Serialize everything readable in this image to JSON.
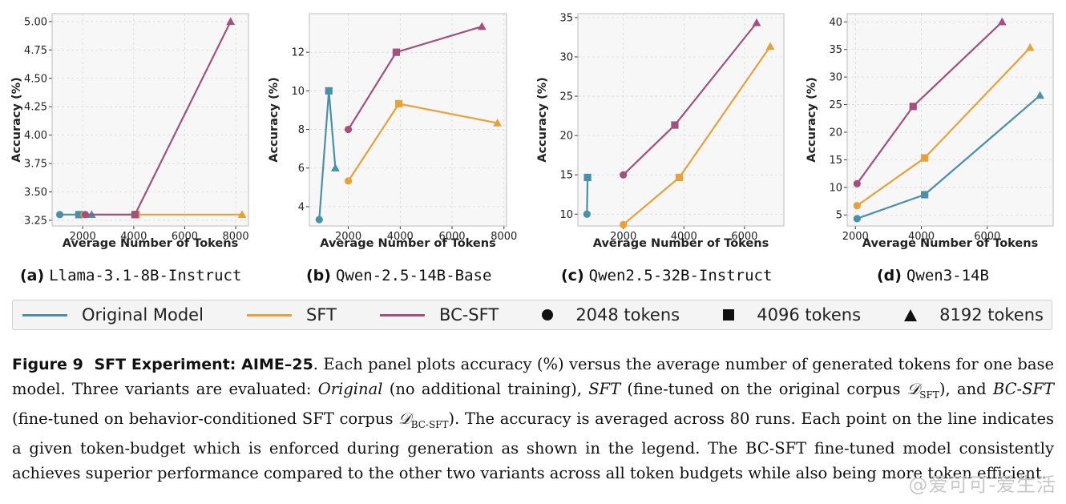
{
  "chart_data": [
    {
      "type": "line",
      "panel_tag": "(a)",
      "model_name": "Llama-3.1-8B-Instruct",
      "xlabel": "Average Number of Tokens",
      "ylabel": "Accuracy (%)",
      "xlim": [
        800,
        8500
      ],
      "ylim": [
        3.2,
        5.07
      ],
      "xticks": [
        2000,
        4000,
        6000,
        8000
      ],
      "yticks": [
        3.25,
        3.5,
        3.75,
        4.0,
        4.25,
        4.5,
        4.75,
        5.0
      ],
      "ytick_labels": [
        "3.25",
        "3.50",
        "3.75",
        "4.00",
        "4.25",
        "4.50",
        "4.75",
        "5.00"
      ],
      "grid": true,
      "series": [
        {
          "name": "Original Model",
          "color": "#4a90a8",
          "points": [
            {
              "x": 1100,
              "y": 3.3
            },
            {
              "x": 1850,
              "y": 3.3
            },
            {
              "x": 2350,
              "y": 3.3
            }
          ]
        },
        {
          "name": "SFT",
          "color": "#e8a13a",
          "points": [
            {
              "x": 2050,
              "y": 3.3
            },
            {
              "x": 4100,
              "y": 3.3
            },
            {
              "x": 8250,
              "y": 3.3
            }
          ]
        },
        {
          "name": "BC-SFT",
          "color": "#a2507e",
          "points": [
            {
              "x": 2100,
              "y": 3.3
            },
            {
              "x": 4050,
              "y": 3.3
            },
            {
              "x": 7800,
              "y": 5.0
            }
          ]
        }
      ]
    },
    {
      "type": "line",
      "panel_tag": "(b)",
      "model_name": "Qwen-2.5-14B-Base",
      "xlabel": "Average Number of Tokens",
      "ylabel": "Accuracy (%)",
      "xlim": [
        500,
        8100
      ],
      "ylim": [
        3.0,
        14.0
      ],
      "xticks": [
        2000,
        4000,
        6000,
        8000
      ],
      "yticks": [
        4,
        6,
        8,
        10,
        12
      ],
      "ytick_labels": [
        "4",
        "6",
        "8",
        "10",
        "12"
      ],
      "grid": true,
      "series": [
        {
          "name": "Original Model",
          "color": "#4a90a8",
          "points": [
            {
              "x": 880,
              "y": 3.33
            },
            {
              "x": 1250,
              "y": 10.0
            },
            {
              "x": 1500,
              "y": 6.0
            }
          ]
        },
        {
          "name": "SFT",
          "color": "#e8a13a",
          "points": [
            {
              "x": 2000,
              "y": 5.33
            },
            {
              "x": 3950,
              "y": 9.33
            },
            {
              "x": 7750,
              "y": 8.33
            }
          ]
        },
        {
          "name": "BC-SFT",
          "color": "#a2507e",
          "points": [
            {
              "x": 2000,
              "y": 8.0
            },
            {
              "x": 3850,
              "y": 12.0
            },
            {
              "x": 7150,
              "y": 13.33
            }
          ]
        }
      ]
    },
    {
      "type": "line",
      "panel_tag": "(c)",
      "model_name": "Qwen2.5-32B-Instruct",
      "xlabel": "Average Number of Tokens",
      "ylabel": "Accuracy (%)",
      "xlim": [
        500,
        7300
      ],
      "ylim": [
        8.5,
        35.5
      ],
      "xticks": [
        2000,
        4000,
        6000
      ],
      "yticks": [
        10,
        15,
        20,
        25,
        30,
        35
      ],
      "ytick_labels": [
        "10",
        "15",
        "20",
        "25",
        "30",
        "35"
      ],
      "grid": true,
      "series": [
        {
          "name": "Original Model",
          "color": "#4a90a8",
          "points": [
            {
              "x": 800,
              "y": 10.0
            },
            {
              "x": 820,
              "y": 14.67
            }
          ]
        },
        {
          "name": "SFT",
          "color": "#e8a13a",
          "points": [
            {
              "x": 2000,
              "y": 8.67
            },
            {
              "x": 3850,
              "y": 14.67
            },
            {
              "x": 6850,
              "y": 31.33
            }
          ]
        },
        {
          "name": "BC-SFT",
          "color": "#a2507e",
          "points": [
            {
              "x": 2000,
              "y": 15.0
            },
            {
              "x": 3700,
              "y": 21.33
            },
            {
              "x": 6400,
              "y": 34.33
            }
          ]
        }
      ]
    },
    {
      "type": "line",
      "panel_tag": "(d)",
      "model_name": "Qwen3-14B",
      "xlabel": "Average Number of Tokens",
      "ylabel": "Accuracy (%)",
      "xlim": [
        1750,
        8000
      ],
      "ylim": [
        3.0,
        41.5
      ],
      "xticks": [
        2000,
        4000,
        6000
      ],
      "yticks": [
        5,
        10,
        15,
        20,
        25,
        30,
        35,
        40
      ],
      "ytick_labels": [
        "5",
        "10",
        "15",
        "20",
        "25",
        "30",
        "35",
        "40"
      ],
      "grid": true,
      "series": [
        {
          "name": "Original Model",
          "color": "#4a90a8",
          "points": [
            {
              "x": 2050,
              "y": 4.33
            },
            {
              "x": 4100,
              "y": 8.67
            },
            {
              "x": 7600,
              "y": 26.67
            }
          ]
        },
        {
          "name": "SFT",
          "color": "#e8a13a",
          "points": [
            {
              "x": 2050,
              "y": 6.67
            },
            {
              "x": 4100,
              "y": 15.33
            },
            {
              "x": 7300,
              "y": 35.33
            }
          ]
        },
        {
          "name": "BC-SFT",
          "color": "#a2507e",
          "points": [
            {
              "x": 2050,
              "y": 10.67
            },
            {
              "x": 3750,
              "y": 24.67
            },
            {
              "x": 6450,
              "y": 40.0
            }
          ]
        }
      ]
    }
  ],
  "legend": {
    "series": [
      {
        "label": "Original Model",
        "color": "#4a90a8"
      },
      {
        "label": "SFT",
        "color": "#e8a13a"
      },
      {
        "label": "BC-SFT",
        "color": "#a2507e"
      }
    ],
    "markers": [
      {
        "label": "2048 tokens",
        "shape": "circle"
      },
      {
        "label": "4096 tokens",
        "shape": "square"
      },
      {
        "label": "8192 tokens",
        "shape": "triangle"
      }
    ]
  },
  "caption": {
    "label": "Figure 9",
    "title": "SFT Experiment: AIME–25",
    "t1": ". Each panel plots accuracy (%) versus the average number of generated tokens for one base model. Three variants are evaluated: ",
    "original": "Original",
    "t2": " (no additional training), ",
    "sft": "SFT",
    "t3": " (fine-tuned on the original corpus ",
    "d_sft": "𝒟",
    "d_sft_sub": "SFT",
    "t4": "), and ",
    "bcsft": "BC-SFT",
    "t5": " (fine-tuned on behavior-conditioned SFT corpus ",
    "d_bc": "𝒟",
    "d_bc_sub": "BC-SFT",
    "t6": "). The accuracy is averaged across 80 runs. Each point on the line indicates a given token-budget which is enforced during generation as shown in the legend. The BC-SFT fine-tuned model consistently achieves superior performance compared to the other two variants across all token budgets while also being more token efficient."
  },
  "watermark": "@爱可可-爱生活"
}
